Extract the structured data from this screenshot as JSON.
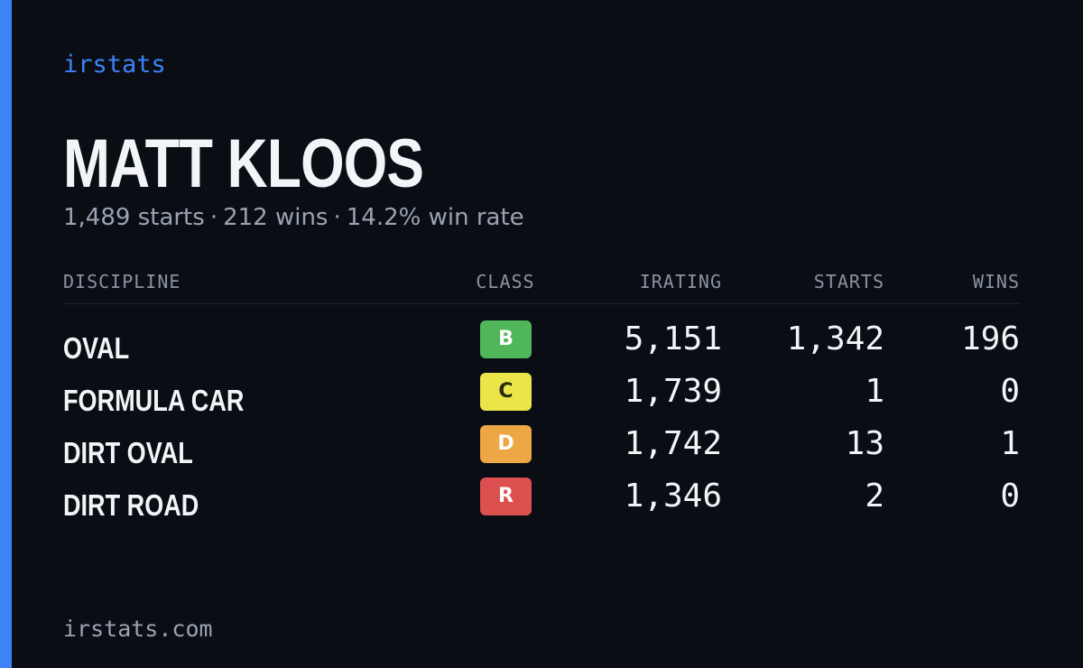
{
  "brand": "irstats",
  "driver": {
    "name": "MATT KLOOS",
    "starts_text": "1,489 starts",
    "wins_text": "212 wins",
    "winrate_text": "14.2% win rate",
    "separator": "·"
  },
  "table": {
    "headers": {
      "discipline": "DISCIPLINE",
      "class": "CLASS",
      "irating": "IRATING",
      "starts": "STARTS",
      "wins": "WINS"
    },
    "rows": [
      {
        "discipline": "OVAL",
        "class": "B",
        "class_bg": "#4fb75a",
        "class_fg": "#ffffff",
        "irating": "5,151",
        "starts": "1,342",
        "wins": "196"
      },
      {
        "discipline": "FORMULA CAR",
        "class": "C",
        "class_bg": "#ece54a",
        "class_fg": "#2a2a10",
        "irating": "1,739",
        "starts": "1",
        "wins": "0"
      },
      {
        "discipline": "DIRT OVAL",
        "class": "D",
        "class_bg": "#eda744",
        "class_fg": "#ffffff",
        "irating": "1,742",
        "starts": "13",
        "wins": "1"
      },
      {
        "discipline": "DIRT ROAD",
        "class": "R",
        "class_bg": "#dc5050",
        "class_fg": "#ffffff",
        "irating": "1,346",
        "starts": "2",
        "wins": "0"
      }
    ]
  },
  "footer": "irstats.com",
  "colors": {
    "background": "#0a0d14",
    "accent": "#3d82f6",
    "text": "#f2f4f8",
    "muted": "#9aa3b2"
  }
}
